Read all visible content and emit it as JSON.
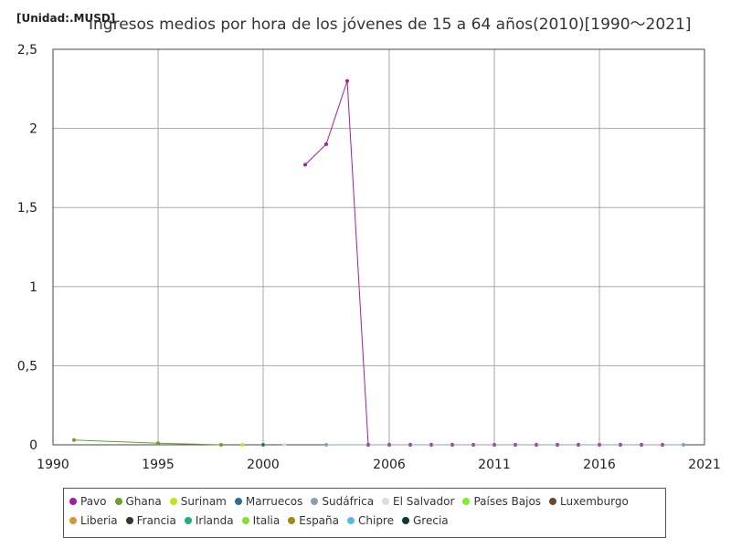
{
  "header": {
    "unit": "[Unidad:.MUSD]",
    "title": "Ingresos medios por hora de los jóvenes de 15 a 64 años(2010)[1990～2021]"
  },
  "chart_data": {
    "type": "line",
    "xlim": [
      1990,
      2021
    ],
    "ylim": [
      0,
      2.5
    ],
    "x_ticks": [
      "1990",
      "1995",
      "2000",
      "2006",
      "2011",
      "2016",
      "2021"
    ],
    "y_ticks": [
      "0",
      "0,5",
      "1",
      "1,5",
      "2",
      "2,5"
    ],
    "grid": true,
    "legend_position": "bottom",
    "series": [
      {
        "name": "Pavo",
        "color": "#a020a0",
        "points": [
          [
            2002,
            1.77
          ],
          [
            2003,
            1.9
          ],
          [
            2004,
            2.3
          ],
          [
            2005,
            0
          ],
          [
            2006,
            0
          ],
          [
            2007,
            0
          ],
          [
            2008,
            0
          ],
          [
            2009,
            0
          ],
          [
            2010,
            0
          ],
          [
            2011,
            0
          ],
          [
            2012,
            0
          ],
          [
            2013,
            0
          ],
          [
            2014,
            0
          ],
          [
            2015,
            0
          ],
          [
            2016,
            0
          ],
          [
            2017,
            0
          ],
          [
            2018,
            0
          ],
          [
            2019,
            0
          ]
        ]
      },
      {
        "name": "Ghana",
        "color": "#6aa12a",
        "points": [
          [
            1991,
            0.03
          ],
          [
            1995,
            0.01
          ],
          [
            1998,
            0
          ]
        ]
      },
      {
        "name": "Surinam",
        "color": "#c6e01b",
        "points": [
          [
            1999,
            0
          ]
        ]
      },
      {
        "name": "Marruecos",
        "color": "#2c6f8e",
        "points": [
          [
            2000,
            0
          ]
        ]
      },
      {
        "name": "Sudáfrica",
        "color": "#8c9fb0",
        "points": [
          [
            2003,
            0
          ],
          [
            2020,
            0
          ]
        ]
      },
      {
        "name": "El Salvador",
        "color": "#dddddd",
        "points": [
          [
            2001,
            0
          ]
        ]
      },
      {
        "name": "Países Bajos",
        "color": "#7cf02a",
        "points": []
      },
      {
        "name": "Luxemburgo",
        "color": "#6b4a2a",
        "points": []
      },
      {
        "name": "Liberia",
        "color": "#d4963a",
        "points": []
      },
      {
        "name": "Francia",
        "color": "#2f3a2a",
        "points": []
      },
      {
        "name": "Irlanda",
        "color": "#1fb07a",
        "points": []
      },
      {
        "name": "Italia",
        "color": "#88dd33",
        "points": []
      },
      {
        "name": "España",
        "color": "#a08a10",
        "points": []
      },
      {
        "name": "Chipre",
        "color": "#5ab8e8",
        "points": []
      },
      {
        "name": "Grecia",
        "color": "#0d3a34",
        "points": []
      }
    ]
  }
}
